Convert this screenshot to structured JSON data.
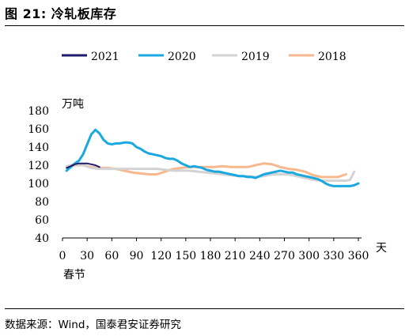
{
  "header": {
    "title": "图 21:  冷轧板库存"
  },
  "footer": {
    "source": "数据来源：Wind，国泰君安证券研究"
  },
  "chart_data": {
    "type": "line",
    "title": "",
    "ylabel": "万吨",
    "xlabel": "天",
    "x_origin_label": "春节",
    "xlim": [
      0,
      360
    ],
    "ylim": [
      40,
      180
    ],
    "xticks": [
      0,
      30,
      60,
      90,
      120,
      150,
      180,
      210,
      240,
      270,
      300,
      330,
      360
    ],
    "yticks": [
      40,
      60,
      80,
      100,
      120,
      140,
      160,
      180
    ],
    "grid": false,
    "legend_position": "top",
    "series": [
      {
        "name": "2021",
        "color": "#1f1a6b",
        "width": 2,
        "x": [
          5,
          10,
          15,
          20,
          25,
          30,
          35,
          40,
          45
        ],
        "y": [
          117,
          119,
          121,
          122,
          122,
          122,
          121,
          120,
          118
        ]
      },
      {
        "name": "2020",
        "color": "#19a9e0",
        "width": 3,
        "x": [
          5,
          10,
          15,
          20,
          25,
          30,
          35,
          40,
          45,
          50,
          55,
          60,
          65,
          70,
          75,
          80,
          85,
          90,
          95,
          100,
          105,
          110,
          115,
          120,
          125,
          130,
          135,
          140,
          145,
          150,
          155,
          160,
          165,
          170,
          175,
          180,
          185,
          190,
          195,
          200,
          205,
          210,
          215,
          220,
          225,
          230,
          235,
          240,
          245,
          250,
          255,
          260,
          265,
          270,
          275,
          280,
          285,
          290,
          295,
          300,
          305,
          310,
          315,
          320,
          325,
          330,
          335,
          340,
          345,
          350,
          355,
          360
        ],
        "y": [
          114,
          118,
          122,
          125,
          132,
          143,
          154,
          159,
          155,
          148,
          144,
          143,
          144,
          144,
          145,
          145,
          144,
          140,
          138,
          135,
          133,
          132,
          131,
          130,
          128,
          127,
          127,
          125,
          122,
          120,
          118,
          119,
          118,
          117,
          115,
          114,
          113,
          113,
          112,
          111,
          110,
          109,
          108,
          108,
          107,
          107,
          106,
          108,
          110,
          111,
          112,
          113,
          114,
          113,
          112,
          112,
          110,
          109,
          108,
          107,
          106,
          105,
          103,
          100,
          98,
          97,
          97,
          97,
          97,
          97,
          98,
          100
        ]
      },
      {
        "name": "2019",
        "color": "#d3d3d3",
        "width": 3,
        "x": [
          5,
          15,
          25,
          35,
          45,
          55,
          65,
          75,
          85,
          95,
          105,
          115,
          125,
          135,
          145,
          155,
          165,
          175,
          185,
          195,
          205,
          215,
          225,
          235,
          245,
          255,
          265,
          275,
          285,
          295,
          305,
          315,
          325,
          335,
          340,
          345,
          350,
          355
        ],
        "y": [
          119,
          121,
          120,
          117,
          116,
          116,
          116,
          116,
          116,
          116,
          116,
          116,
          115,
          114,
          114,
          114,
          113,
          112,
          111,
          110,
          109,
          108,
          108,
          107,
          108,
          110,
          110,
          110,
          108,
          106,
          104,
          103,
          103,
          103,
          103,
          103,
          104,
          113
        ]
      },
      {
        "name": "2018",
        "color": "#f7b88e",
        "width": 3,
        "x": [
          5,
          15,
          25,
          35,
          45,
          55,
          65,
          75,
          85,
          95,
          105,
          115,
          125,
          135,
          145,
          155,
          165,
          175,
          185,
          195,
          205,
          215,
          225,
          235,
          245,
          255,
          265,
          275,
          285,
          295,
          305,
          315,
          325,
          335,
          345
        ],
        "y": [
          118,
          120,
          120,
          118,
          117,
          117,
          116,
          114,
          112,
          111,
          110,
          110,
          113,
          116,
          117,
          118,
          118,
          118,
          118,
          119,
          118,
          118,
          118,
          120,
          122,
          121,
          118,
          116,
          115,
          113,
          109,
          107,
          107,
          107,
          110
        ]
      }
    ]
  }
}
